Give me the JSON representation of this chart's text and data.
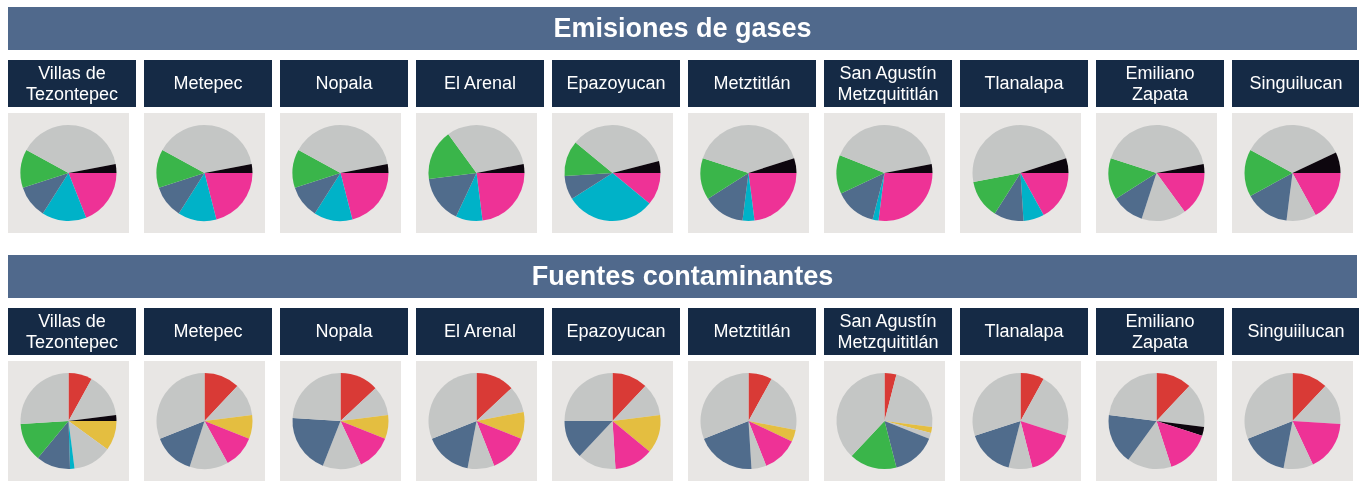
{
  "chart_data": [
    {
      "type": "other",
      "title": "Emisiones de gases"
    },
    {
      "type": "pie",
      "title": "Villas de Tezontepec",
      "categories": [
        null,
        null,
        null,
        null,
        null,
        null
      ],
      "values": [
        19,
        15,
        11,
        13,
        39,
        3
      ],
      "colors": [
        "#ee3296",
        "#00b2c8",
        "#506c8c",
        "#3ab54a",
        "#c4c6c5",
        "#0d060e"
      ]
    },
    {
      "type": "pie",
      "title": "Metepec",
      "categories": [
        null,
        null,
        null,
        null,
        null,
        null
      ],
      "values": [
        21,
        13,
        11,
        13,
        39,
        3
      ],
      "colors": [
        "#ee3296",
        "#00b2c8",
        "#506c8c",
        "#3ab54a",
        "#c4c6c5",
        "#0d060e"
      ]
    },
    {
      "type": "pie",
      "title": "Nopala",
      "categories": [
        null,
        null,
        null,
        null,
        null,
        null
      ],
      "values": [
        21,
        13,
        11,
        13,
        39,
        3
      ],
      "colors": [
        "#ee3296",
        "#00b2c8",
        "#506c8c",
        "#3ab54a",
        "#c4c6c5",
        "#0d060e"
      ]
    },
    {
      "type": "pie",
      "title": "El Arenal",
      "categories": [
        null,
        null,
        null,
        null,
        null,
        null
      ],
      "values": [
        23,
        9,
        16,
        17,
        32,
        3
      ],
      "colors": [
        "#ee3296",
        "#00b2c8",
        "#506c8c",
        "#3ab54a",
        "#c4c6c5",
        "#0d060e"
      ]
    },
    {
      "type": "pie",
      "title": "Epazoyucan",
      "categories": [
        null,
        null,
        null,
        null,
        null,
        null
      ],
      "values": [
        11,
        30,
        8,
        12,
        35,
        4
      ],
      "colors": [
        "#ee3296",
        "#00b2c8",
        "#506c8c",
        "#3ab54a",
        "#c4c6c5",
        "#0d060e"
      ]
    },
    {
      "type": "pie",
      "title": "Metztitlán",
      "categories": [
        null,
        null,
        null,
        null,
        null,
        null
      ],
      "values": [
        23,
        4,
        14,
        14,
        40,
        5
      ],
      "colors": [
        "#ee3296",
        "#00b2c8",
        "#506c8c",
        "#3ab54a",
        "#c4c6c5",
        "#0d060e"
      ]
    },
    {
      "type": "pie",
      "title": "San Agustín Metzquititlán",
      "categories": [
        null,
        null,
        null,
        null,
        null,
        null
      ],
      "values": [
        27,
        2,
        14,
        13,
        41,
        3
      ],
      "colors": [
        "#ee3296",
        "#00b2c8",
        "#506c8c",
        "#3ab54a",
        "#c4c6c5",
        "#0d060e"
      ]
    },
    {
      "type": "pie",
      "title": "Tlanalapa",
      "categories": [
        null,
        null,
        null,
        null,
        null,
        null
      ],
      "values": [
        17,
        7,
        10,
        13,
        48,
        5
      ],
      "colors": [
        "#ee3296",
        "#00b2c8",
        "#506c8c",
        "#3ab54a",
        "#c4c6c5",
        "#0d060e"
      ]
    },
    {
      "type": "pie",
      "title": "Emiliano Zapata",
      "categories": [
        null,
        null,
        null,
        null,
        null,
        null
      ],
      "values": [
        15,
        15,
        11,
        14,
        42,
        3
      ],
      "colors": [
        "#ee3296",
        "#c4c6c5",
        "#506c8c",
        "#3ab54a",
        "#c4c6c5",
        "#0d060e"
      ]
    },
    {
      "type": "pie",
      "title": "Singuilucan",
      "categories": [
        null,
        null,
        null,
        null,
        null,
        null
      ],
      "values": [
        17,
        10,
        15,
        16,
        35,
        7
      ],
      "colors": [
        "#ee3296",
        "#c4c6c5",
        "#506c8c",
        "#3ab54a",
        "#c4c6c5",
        "#0d060e"
      ]
    },
    {
      "type": "other",
      "title": "Fuentes contaminantes"
    },
    {
      "type": "pie",
      "title": "Villas de Tezontepec",
      "categories": [
        null,
        null,
        null,
        null,
        null,
        null,
        null,
        null,
        null
      ],
      "values": [
        8,
        15,
        2,
        10,
        13,
        1.5,
        11.5,
        13,
        26
      ],
      "colors": [
        "#d93a36",
        "#c4c6c5",
        "#0d060e",
        "#e4be40",
        "#c4c6c5",
        "#00b2c8",
        "#506c8c",
        "#3ab54a",
        "#c4c6c5"
      ]
    },
    {
      "type": "pie",
      "title": "Metepec",
      "categories": [
        null,
        null,
        null,
        null,
        null,
        null,
        null
      ],
      "values": [
        12,
        11,
        8,
        11,
        13,
        14,
        31
      ],
      "colors": [
        "#d93a36",
        "#c4c6c5",
        "#e4be40",
        "#ee3296",
        "#c4c6c5",
        "#506c8c",
        "#c4c6c5"
      ]
    },
    {
      "type": "pie",
      "title": "Nopala",
      "categories": [
        null,
        null,
        null,
        null,
        null,
        null,
        null
      ],
      "values": [
        13,
        10,
        8,
        12,
        13,
        20,
        24
      ],
      "colors": [
        "#d93a36",
        "#c4c6c5",
        "#e4be40",
        "#ee3296",
        "#c4c6c5",
        "#506c8c",
        "#c4c6c5"
      ]
    },
    {
      "type": "pie",
      "title": "El Arenal",
      "categories": [
        null,
        null,
        null,
        null,
        null,
        null,
        null
      ],
      "values": [
        13,
        9,
        9,
        13,
        9,
        16,
        31
      ],
      "colors": [
        "#d93a36",
        "#c4c6c5",
        "#e4be40",
        "#ee3296",
        "#c4c6c5",
        "#506c8c",
        "#c4c6c5"
      ]
    },
    {
      "type": "pie",
      "title": "Epazoyucan",
      "categories": [
        null,
        null,
        null,
        null,
        null,
        null,
        null
      ],
      "values": [
        12,
        11,
        13,
        13,
        13,
        13,
        25
      ],
      "colors": [
        "#d93a36",
        "#c4c6c5",
        "#e4be40",
        "#ee3296",
        "#c4c6c5",
        "#506c8c",
        "#c4c6c5"
      ]
    },
    {
      "type": "pie",
      "title": "Metztitlán",
      "categories": [
        null,
        null,
        null,
        null,
        null,
        null,
        null
      ],
      "values": [
        8,
        20,
        4,
        12,
        5,
        20,
        31
      ],
      "colors": [
        "#d93a36",
        "#c4c6c5",
        "#e4be40",
        "#ee3296",
        "#c4c6c5",
        "#506c8c",
        "#c4c6c5"
      ]
    },
    {
      "type": "pie",
      "title": "San Agustín Metzquititlán",
      "categories": [
        null,
        null,
        null,
        null,
        null,
        null,
        null
      ],
      "values": [
        4,
        23,
        2,
        2,
        15,
        16,
        38
      ],
      "colors": [
        "#d93a36",
        "#c4c6c5",
        "#e4be40",
        "#c4c6c5",
        "#506c8c",
        "#3ab54a",
        "#c4c6c5"
      ]
    },
    {
      "type": "pie",
      "title": "Tlanalapa",
      "categories": [
        null,
        null,
        null,
        null,
        null,
        null
      ],
      "values": [
        8,
        22,
        16,
        8,
        16,
        30
      ],
      "colors": [
        "#d93a36",
        "#c4c6c5",
        "#ee3296",
        "#c4c6c5",
        "#506c8c",
        "#c4c6c5"
      ]
    },
    {
      "type": "pie",
      "title": "Emiliano Zapata",
      "categories": [
        null,
        null,
        null,
        null,
        null,
        null,
        null
      ],
      "values": [
        12,
        15,
        3,
        15,
        15,
        17,
        23
      ],
      "colors": [
        "#d93a36",
        "#c4c6c5",
        "#0d060e",
        "#ee3296",
        "#c4c6c5",
        "#506c8c",
        "#c4c6c5"
      ]
    },
    {
      "type": "pie",
      "title": "Singuiilucan",
      "categories": [
        null,
        null,
        null,
        null,
        null,
        null
      ],
      "values": [
        12,
        14,
        17,
        10,
        16,
        31
      ],
      "colors": [
        "#d93a36",
        "#c4c6c5",
        "#ee3296",
        "#c4c6c5",
        "#506c8c",
        "#c4c6c5"
      ]
    }
  ]
}
